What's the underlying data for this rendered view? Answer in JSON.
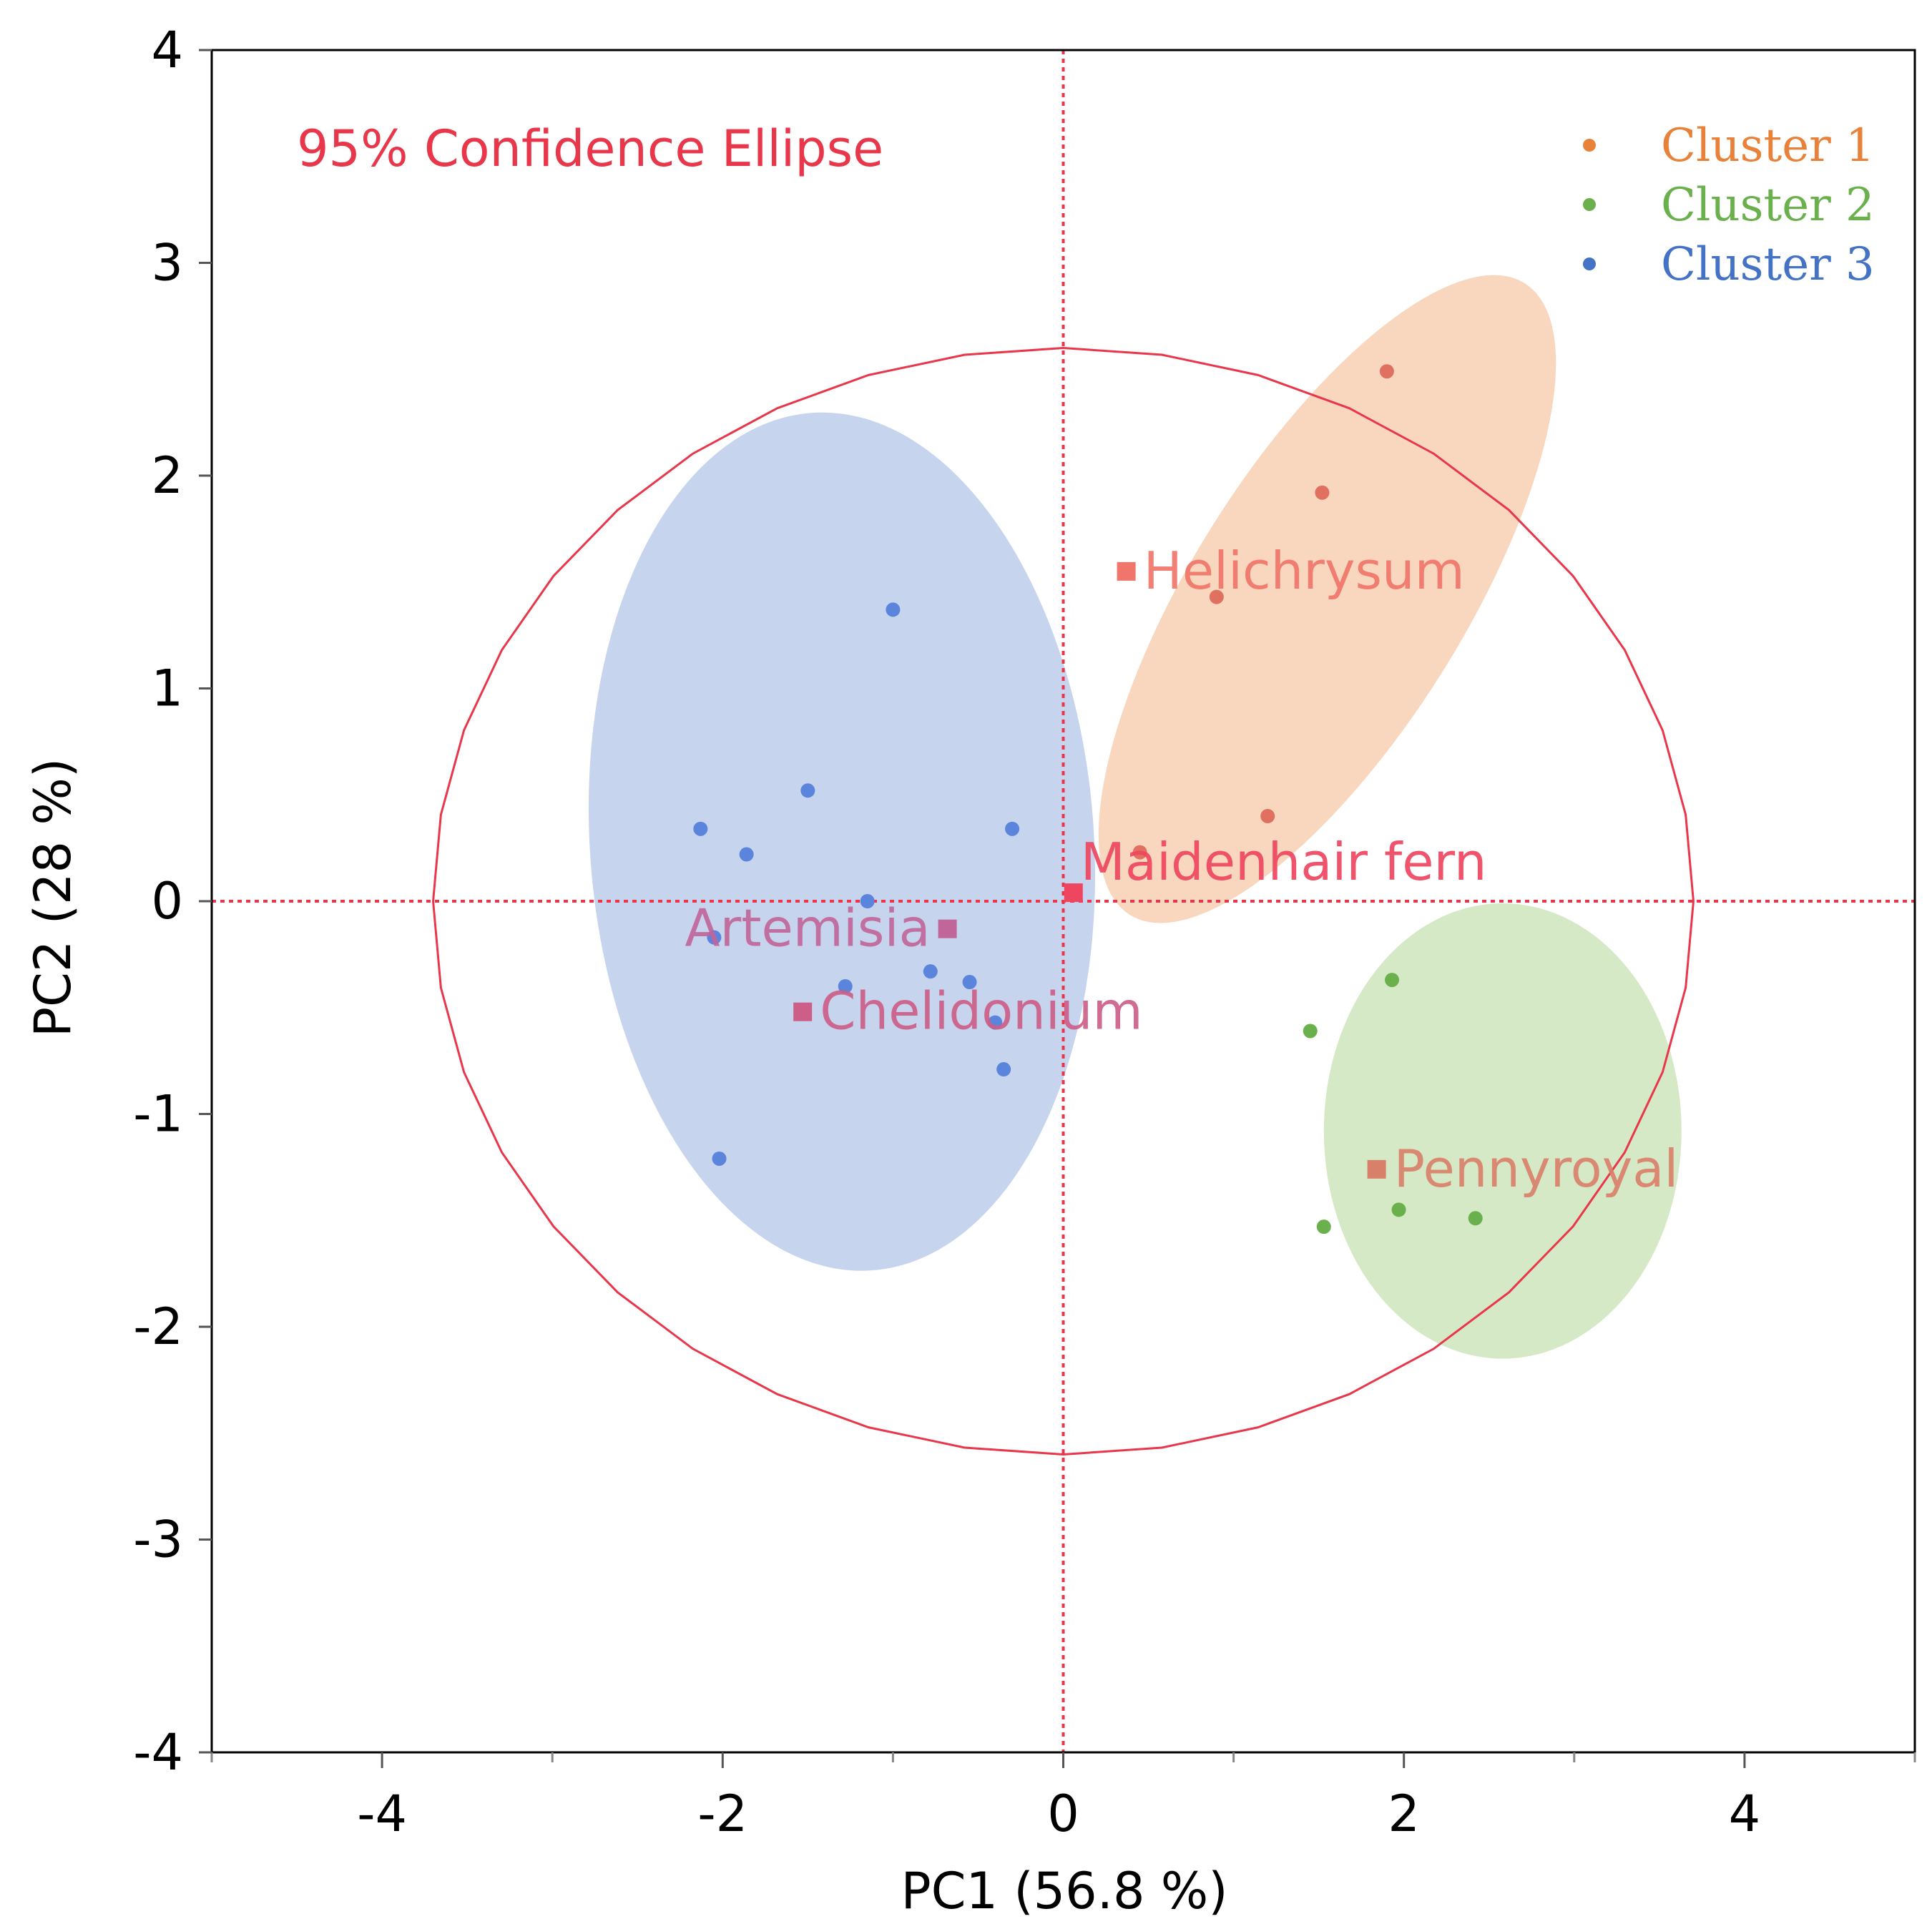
{
  "chart_data": {
    "type": "scatter",
    "xlabel": "PC1  (56.8 %)",
    "ylabel": "PC2  (28 %)",
    "xlim": [
      -5,
      5
    ],
    "ylim": [
      -4,
      4
    ],
    "xticks": [
      -4,
      -2,
      0,
      2,
      4
    ],
    "xtick_labels": [
      "-4",
      "-2",
      "0",
      "2",
      "4"
    ],
    "yticks": [
      -4,
      -3,
      -2,
      -1,
      0,
      1,
      2,
      3,
      4
    ],
    "ytick_labels": [
      "-4",
      "-3",
      "-2",
      "-1",
      "0",
      "1",
      "2",
      "3",
      "4"
    ],
    "annotation": "95% Confidence Ellipse",
    "legend_position": "top-right",
    "colors": {
      "ellipse": "#e8374b",
      "axis": "#000000",
      "reference_lines": "#e8374b"
    },
    "confidence_ellipse": {
      "cx": 0,
      "cy": 0,
      "rx": 3.7,
      "ry": 2.6
    },
    "series": [
      {
        "name": "Cluster 1",
        "color": "#e8823a",
        "point_color": "#e07060",
        "fill": "#f5c9a8",
        "ellipse": {
          "cx": 1.55,
          "cy": 1.42,
          "rx": 0.8,
          "ry": 1.75,
          "rotation_deg": 32
        },
        "points": [
          {
            "x": 1.9,
            "y": 2.49
          },
          {
            "x": 1.52,
            "y": 1.92
          },
          {
            "x": 0.9,
            "y": 1.43
          },
          {
            "x": 1.2,
            "y": 0.4
          },
          {
            "x": 0.45,
            "y": 0.23
          }
        ]
      },
      {
        "name": "Cluster 2",
        "color": "#6ab04c",
        "point_color": "#6ab04c",
        "fill": "#c8e2b3",
        "ellipse": {
          "cx": 2.58,
          "cy": -1.08,
          "rx": 1.05,
          "ry": 1.07,
          "rotation_deg": 0
        },
        "points": [
          {
            "x": 1.93,
            "y": -0.37
          },
          {
            "x": 1.45,
            "y": -0.61
          },
          {
            "x": 1.97,
            "y": -1.45
          },
          {
            "x": 2.42,
            "y": -1.49
          },
          {
            "x": 1.53,
            "y": -1.53
          }
        ]
      },
      {
        "name": "Cluster 3",
        "color": "#4472c4",
        "point_color": "#5b84dc",
        "fill": "#b3c6e7",
        "ellipse": {
          "cx": -1.3,
          "cy": 0.28,
          "rx": 1.48,
          "ry": 2.02,
          "rotation_deg": -4
        },
        "points": [
          {
            "x": -1.0,
            "y": 1.37
          },
          {
            "x": -1.5,
            "y": 0.52
          },
          {
            "x": -2.13,
            "y": 0.34
          },
          {
            "x": -1.86,
            "y": 0.22
          },
          {
            "x": -0.3,
            "y": 0.34
          },
          {
            "x": -1.15,
            "y": 0.0
          },
          {
            "x": -2.05,
            "y": -0.17
          },
          {
            "x": -0.78,
            "y": -0.33
          },
          {
            "x": -0.55,
            "y": -0.38
          },
          {
            "x": -1.28,
            "y": -0.4
          },
          {
            "x": -0.4,
            "y": -0.57
          },
          {
            "x": -0.35,
            "y": -0.79
          },
          {
            "x": -2.02,
            "y": -1.21
          }
        ]
      }
    ],
    "centroids": [
      {
        "label": "Helichrysum",
        "x": 0.37,
        "y": 1.55,
        "color": "#f0756a",
        "anchor": "right"
      },
      {
        "label": "Maidenhair fern",
        "x": 0.06,
        "y": 0.04,
        "color": "#ee4560",
        "anchor": "top"
      },
      {
        "label": "Artemisia",
        "x": -0.68,
        "y": -0.13,
        "color": "#c0669a",
        "anchor": "left"
      },
      {
        "label": "Chelidonium",
        "x": -1.53,
        "y": -0.52,
        "color": "#cc5e88",
        "anchor": "right"
      },
      {
        "label": "Pennyroyal",
        "x": 1.84,
        "y": -1.26,
        "color": "#d9806a",
        "anchor": "right"
      }
    ]
  }
}
